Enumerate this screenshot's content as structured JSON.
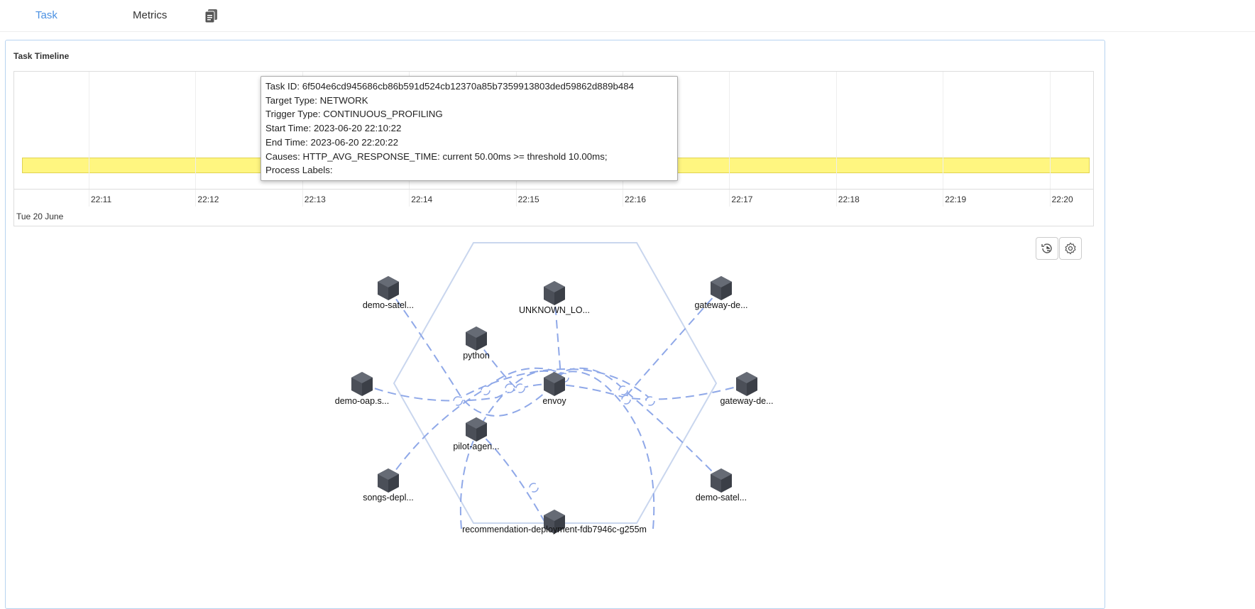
{
  "tabs": [
    {
      "label": "Task",
      "active": true
    },
    {
      "label": "Metrics",
      "active": false
    }
  ],
  "copy_icon": "copy-icon",
  "panel": {
    "title": "Task Timeline"
  },
  "timeline": {
    "ticks": [
      "22:11",
      "22:12",
      "22:13",
      "22:14",
      "22:15",
      "22:16",
      "22:17",
      "22:18",
      "22:19",
      "22:20"
    ],
    "date": "Tue 20 June",
    "bar_color": "#fff680",
    "tooltip": [
      "Task ID: 6f504e6cd945686cb86b591d524cb12370a85b7359913803ded59862d889b484",
      "Target Type: NETWORK",
      "Trigger Type: CONTINUOUS_PROFILING",
      "Start Time: 2023-06-20 22:10:22",
      "End Time: 2023-06-20 22:20:22",
      "Causes: HTTP_AVG_RESPONSE_TIME: current 50.00ms >= threshold 10.00ms;",
      "Process Labels:"
    ]
  },
  "topology": {
    "buttons": [
      "history-icon",
      "settings-icon"
    ],
    "edge_color": "#8fa8e8",
    "nodes": [
      "demo-satel...",
      "UNKNOWN_LO...",
      "gateway-de...",
      "python",
      "demo-oap.s...",
      "envoy",
      "gateway-de...",
      "pilot-agen...",
      "songs-depl...",
      "demo-satel...",
      "recommendation-deployment-fdb7946c-g255m"
    ]
  }
}
